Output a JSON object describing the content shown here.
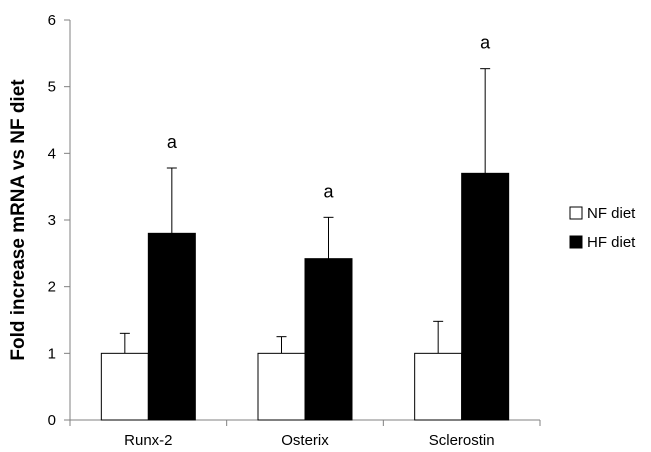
{
  "chart_data": {
    "type": "bar",
    "categories": [
      "Runx-2",
      "Osterix",
      "Sclerostin"
    ],
    "series": [
      {
        "name": "NF diet",
        "values": [
          1.0,
          1.0,
          1.0
        ],
        "errors": [
          0.3,
          0.25,
          0.48
        ],
        "fill": "#ffffff",
        "annotations": [
          "",
          "",
          ""
        ]
      },
      {
        "name": "HF diet",
        "values": [
          2.8,
          2.42,
          3.7
        ],
        "errors": [
          0.98,
          0.62,
          1.57
        ],
        "fill": "#000000",
        "annotations": [
          "a",
          "a",
          "a"
        ]
      }
    ],
    "ylabel": "Fold  increase  mRNA vs NF diet",
    "ylim": [
      0,
      6
    ],
    "yticks": [
      "0",
      "1",
      "2",
      "3",
      "4",
      "5",
      "6"
    ],
    "grid": false,
    "legend_position": "right"
  }
}
